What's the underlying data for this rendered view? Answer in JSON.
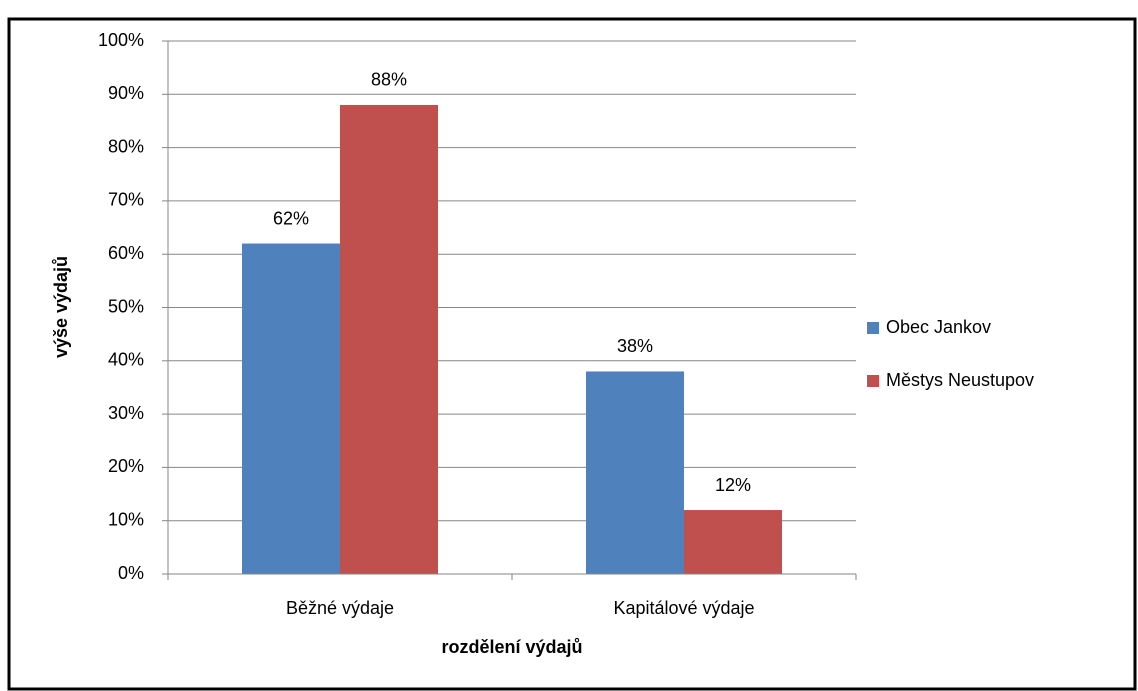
{
  "chart_data": {
    "type": "bar",
    "x_label": "rozdělení výdajů",
    "y_label": "výše výdajů",
    "categories": [
      "Běžné výdaje",
      "Kapitálové výdaje"
    ],
    "series": [
      {
        "name": "Obec Jankov",
        "color": "#4f81bd",
        "values": [
          62,
          38
        ],
        "value_labels": [
          "62%",
          "38%"
        ]
      },
      {
        "name": "Městys Neustupov",
        "color": "#c0504d",
        "values": [
          88,
          12
        ],
        "value_labels": [
          "88%",
          "12%"
        ]
      }
    ],
    "ylim": [
      0,
      100
    ],
    "yticks": [
      {
        "value": 0,
        "label": "0%"
      },
      {
        "value": 10,
        "label": "10%"
      },
      {
        "value": 20,
        "label": "20%"
      },
      {
        "value": 30,
        "label": "30%"
      },
      {
        "value": 40,
        "label": "40%"
      },
      {
        "value": 50,
        "label": "50%"
      },
      {
        "value": 60,
        "label": "60%"
      },
      {
        "value": 70,
        "label": "70%"
      },
      {
        "value": 80,
        "label": "80%"
      },
      {
        "value": 90,
        "label": "90%"
      },
      {
        "value": 100,
        "label": "100%"
      }
    ],
    "grid": true,
    "legend": "right"
  }
}
